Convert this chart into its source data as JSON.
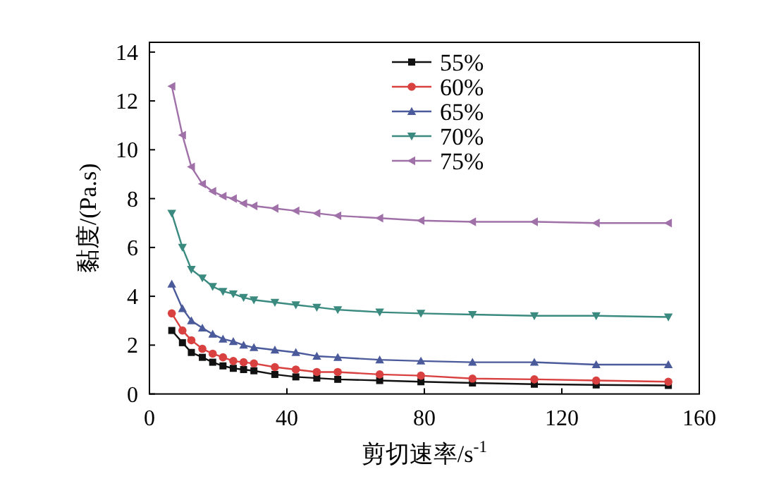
{
  "chart_data": {
    "type": "line",
    "xlabel": "剪切速率/s$^{-1}$",
    "ylabel": "黏度/(Pa.s)",
    "xlim": [
      0,
      160
    ],
    "ylim": [
      0,
      14.4
    ],
    "xticks": [
      0,
      40,
      80,
      120,
      160
    ],
    "yticks": [
      0,
      2,
      4,
      6,
      8,
      10,
      12,
      14
    ],
    "legend": "top",
    "grid": false,
    "line_style": "solid",
    "x": [
      6.5,
      9.6,
      12.2,
      15.4,
      18.4,
      21.4,
      24.4,
      27.4,
      30.4,
      36.5,
      42.6,
      48.7,
      54.8,
      67,
      79,
      94,
      112,
      130,
      151
    ],
    "series": [
      {
        "name": "55%",
        "color": "#111111",
        "marker": "square",
        "values": [
          2.6,
          2.1,
          1.7,
          1.5,
          1.3,
          1.15,
          1.05,
          1.0,
          0.95,
          0.8,
          0.7,
          0.65,
          0.6,
          0.55,
          0.5,
          0.45,
          0.4,
          0.37,
          0.35
        ]
      },
      {
        "name": "60%",
        "color": "#d94040",
        "marker": "circle",
        "values": [
          3.3,
          2.6,
          2.2,
          1.85,
          1.65,
          1.5,
          1.35,
          1.3,
          1.25,
          1.1,
          1.0,
          0.9,
          0.9,
          0.8,
          0.75,
          0.63,
          0.6,
          0.55,
          0.5
        ]
      },
      {
        "name": "65%",
        "color": "#4a5a9a",
        "marker": "triangle",
        "values": [
          4.5,
          3.5,
          3.0,
          2.7,
          2.45,
          2.25,
          2.15,
          2.0,
          1.9,
          1.8,
          1.7,
          1.55,
          1.5,
          1.4,
          1.35,
          1.3,
          1.3,
          1.2,
          1.2
        ]
      },
      {
        "name": "70%",
        "color": "#3a8a80",
        "marker": "triangle-down",
        "values": [
          7.4,
          6.0,
          5.1,
          4.75,
          4.4,
          4.2,
          4.1,
          3.95,
          3.85,
          3.75,
          3.65,
          3.55,
          3.45,
          3.35,
          3.3,
          3.25,
          3.2,
          3.2,
          3.15
        ]
      },
      {
        "name": "75%",
        "color": "#a070a8",
        "marker": "triangle-left",
        "values": [
          12.6,
          10.6,
          9.3,
          8.6,
          8.3,
          8.1,
          8.0,
          7.8,
          7.7,
          7.6,
          7.5,
          7.4,
          7.3,
          7.2,
          7.1,
          7.05,
          7.05,
          7.0,
          7.0
        ]
      }
    ]
  }
}
